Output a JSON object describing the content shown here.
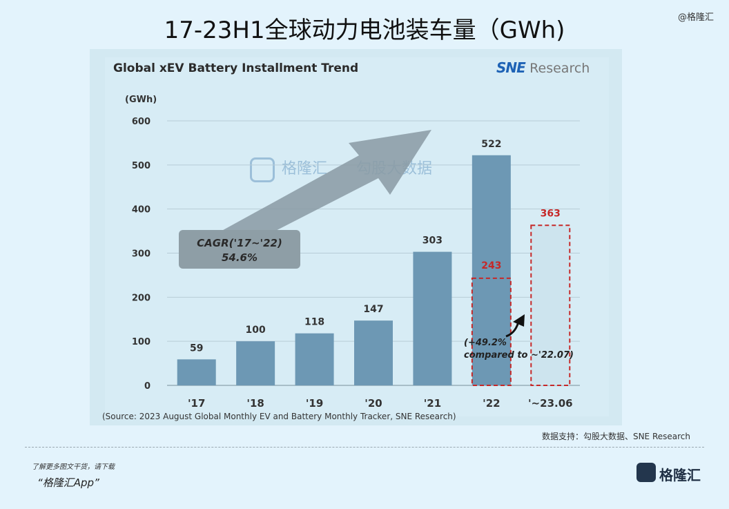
{
  "page": {
    "main_title": "17-23H1全球动力电池装车量（GWh)",
    "top_watermark": "@格隆汇",
    "chart_title": "Global xEV Battery Installment Trend",
    "logo_sne": "SNE",
    "logo_research": "Research",
    "unit_label": "(GWh)",
    "source": "(Source: 2023 August Global Monthly EV and Battery Monthly Tracker, SNE Research)",
    "credit": "数据支持：勾股大数据、SNE Research",
    "footer_line1": "了解更多图文干货，请下载",
    "footer_line2": "“格隆汇App”",
    "footer_logo_text": "格隆汇",
    "center_watermark_1": "格隆汇",
    "center_watermark_2": "勾股大数据",
    "cagr_line1": "CAGR('17~'22)",
    "cagr_line2": "54.6%",
    "note_line1": "(+49.2%",
    "note_line2": "compared to ~'22.07)"
  },
  "chart_data": {
    "type": "bar",
    "categories": [
      "'17",
      "'18",
      "'19",
      "'20",
      "'21",
      "'22",
      "'~23.06"
    ],
    "values": [
      59,
      100,
      118,
      147,
      303,
      522,
      null
    ],
    "value_labels": [
      "59",
      "100",
      "118",
      "147",
      "303",
      "522",
      ""
    ],
    "partial_values": [
      null,
      null,
      null,
      null,
      null,
      243,
      363
    ],
    "partial_labels": [
      "",
      "",
      "",
      "",
      "",
      "243",
      "363"
    ],
    "ylim": [
      0,
      600
    ],
    "yticks": [
      0,
      100,
      200,
      300,
      400,
      500,
      600
    ],
    "title": "Global xEV Battery Installment Trend",
    "ylabel": "(GWh)",
    "grid": true,
    "colors": {
      "bar": "#6d98b4",
      "partial_border": "#c62828",
      "partial_label": "#c62828",
      "grid": "#b7ccd6",
      "axis_text": "#333333"
    }
  }
}
